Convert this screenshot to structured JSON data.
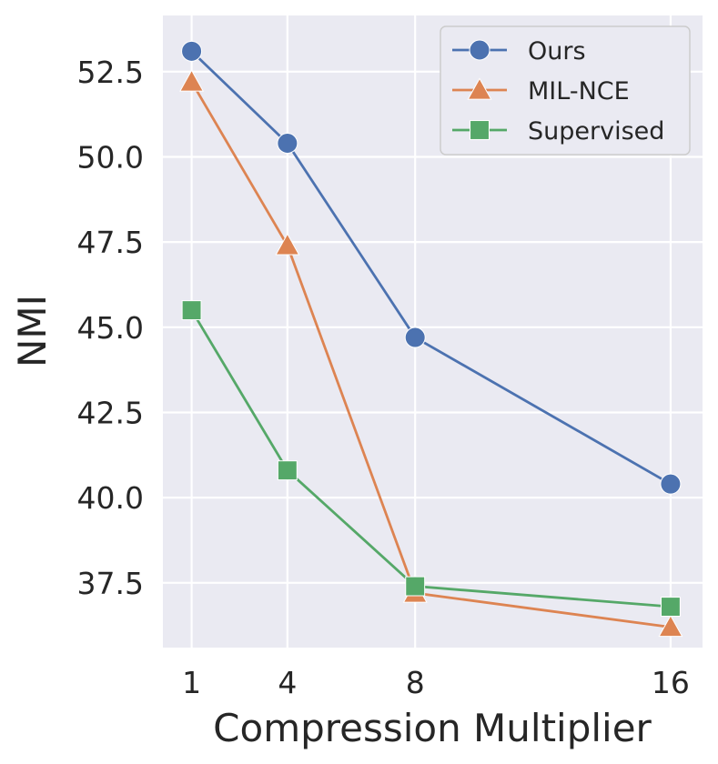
{
  "chart_data": {
    "type": "line",
    "title": "",
    "xlabel": "Compression Multiplier",
    "ylabel": "NMI",
    "x": [
      1,
      4,
      8,
      16
    ],
    "x_tick_labels": [
      "1",
      "4",
      "8",
      "16"
    ],
    "y_ticks": [
      37.5,
      40.0,
      42.5,
      45.0,
      47.5,
      50.0,
      52.5
    ],
    "y_tick_labels": [
      "37.5",
      "40.0",
      "42.5",
      "45.0",
      "47.5",
      "50.0",
      "52.5"
    ],
    "xlim": [
      0.1,
      17.0
    ],
    "ylim": [
      35.6,
      54.15
    ],
    "grid": true,
    "legend_position": "top-right",
    "series": [
      {
        "name": "Ours",
        "marker": "circle",
        "color": "#4c72b0",
        "values": [
          53.1,
          50.4,
          44.7,
          40.4
        ]
      },
      {
        "name": "MIL-NCE",
        "marker": "triangle",
        "color": "#dd8452",
        "values": [
          52.2,
          47.4,
          37.2,
          36.2
        ]
      },
      {
        "name": "Supervised",
        "marker": "square",
        "color": "#55a868",
        "values": [
          45.5,
          40.8,
          37.4,
          36.8
        ]
      }
    ]
  }
}
